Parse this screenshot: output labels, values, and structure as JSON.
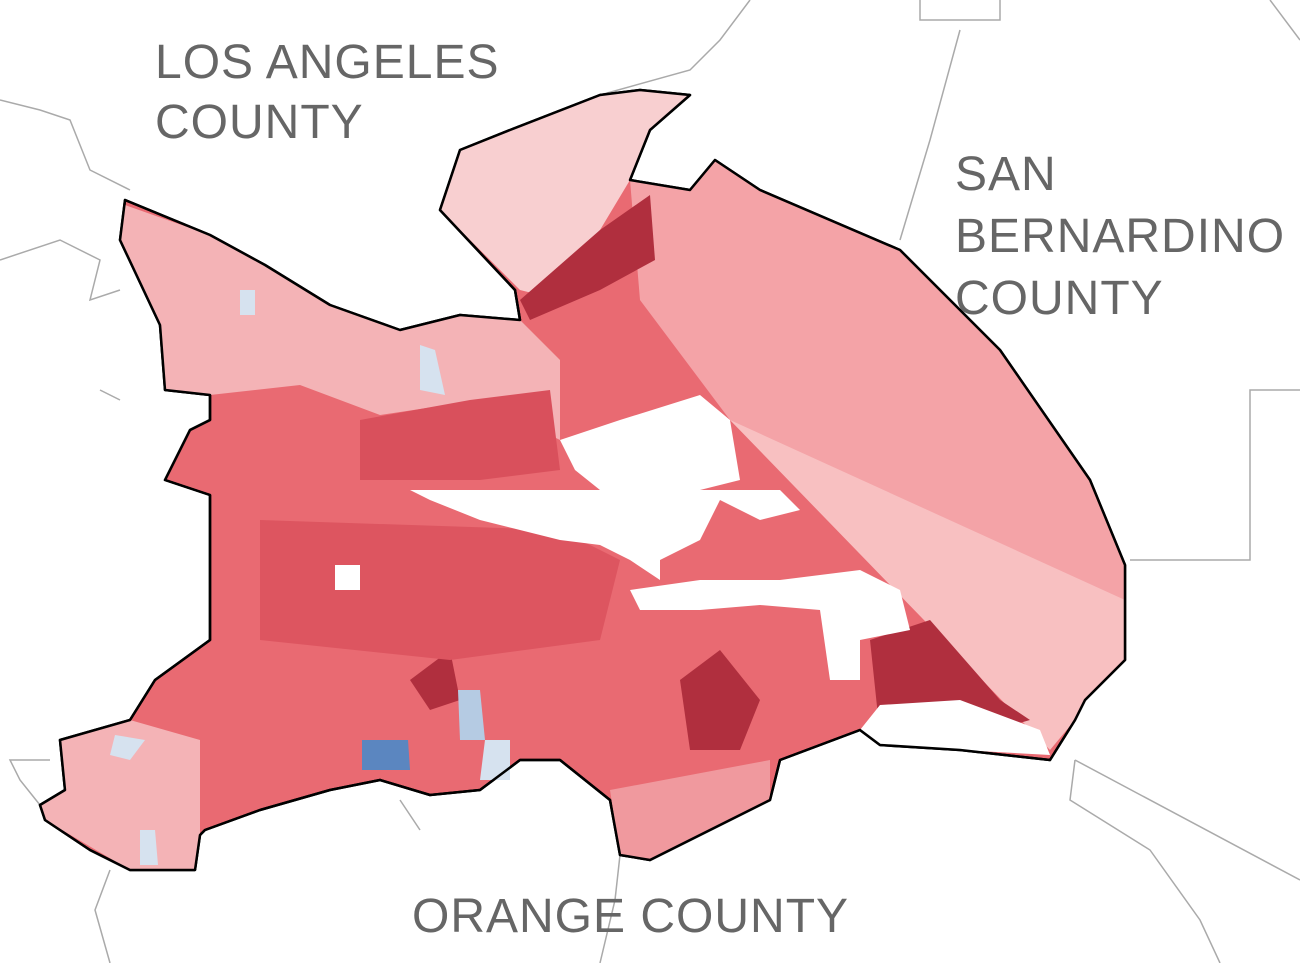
{
  "labels": [
    {
      "lines": [
        "LOS ANGELES",
        "COUNTY"
      ]
    },
    {
      "lines": [
        "SAN",
        "BERNARDINO",
        "COUNTY"
      ]
    },
    {
      "lines": [
        "ORANGE COUNTY"
      ]
    }
  ]
}
